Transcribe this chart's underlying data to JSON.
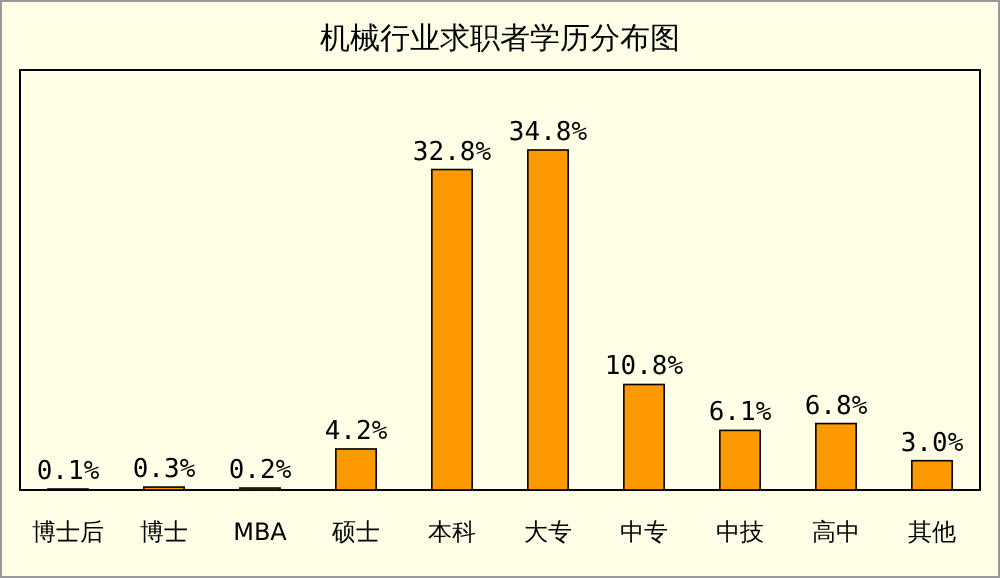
{
  "chart_data": {
    "type": "bar",
    "title": "机械行业求职者学历分布图",
    "categories": [
      "博士后",
      "博士",
      "MBA",
      "硕士",
      "本科",
      "大专",
      "中专",
      "中技",
      "高中",
      "其他"
    ],
    "values": [
      0.1,
      0.3,
      0.2,
      4.2,
      32.8,
      34.8,
      10.8,
      6.1,
      6.8,
      3.0
    ],
    "value_labels": [
      "0.1%",
      "0.3%",
      "0.2%",
      "4.2%",
      "32.8%",
      "34.8%",
      "10.8%",
      "6.1%",
      "6.8%",
      "3.0%"
    ],
    "color": "#ff9900"
  }
}
